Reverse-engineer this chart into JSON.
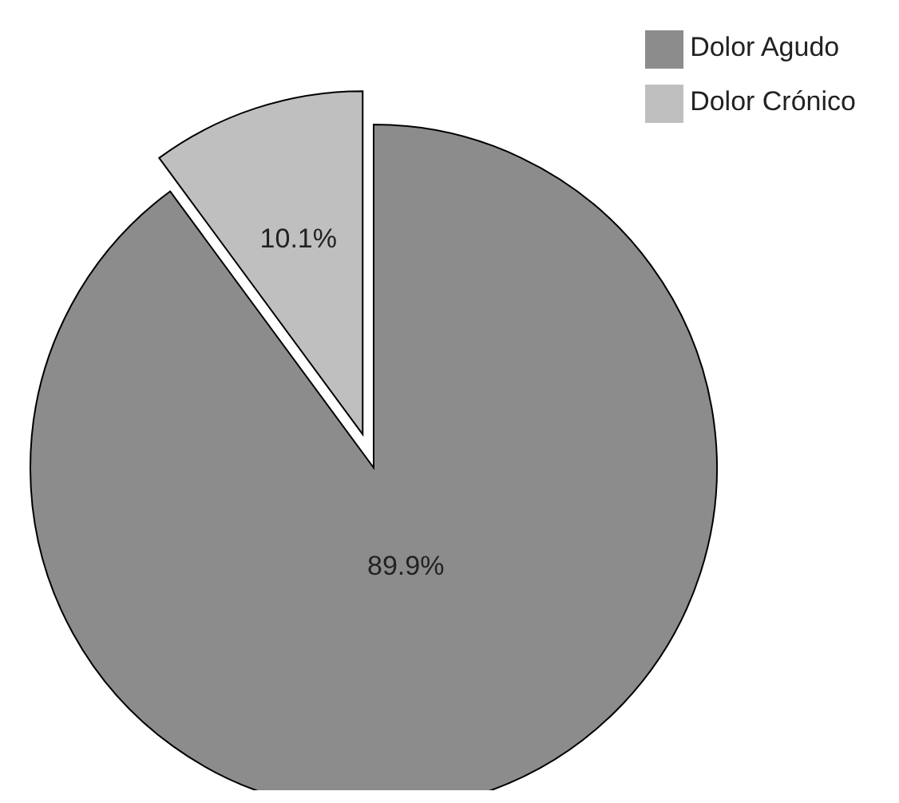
{
  "chart_data": {
    "type": "pie",
    "categories": [
      "Dolor Agudo",
      "Dolor Crónico"
    ],
    "values": [
      89.9,
      10.1
    ],
    "value_labels": [
      "89.9%",
      "10.1%"
    ],
    "colors": [
      "#8c8c8c",
      "#bfbfbf"
    ],
    "legend": "top right"
  }
}
